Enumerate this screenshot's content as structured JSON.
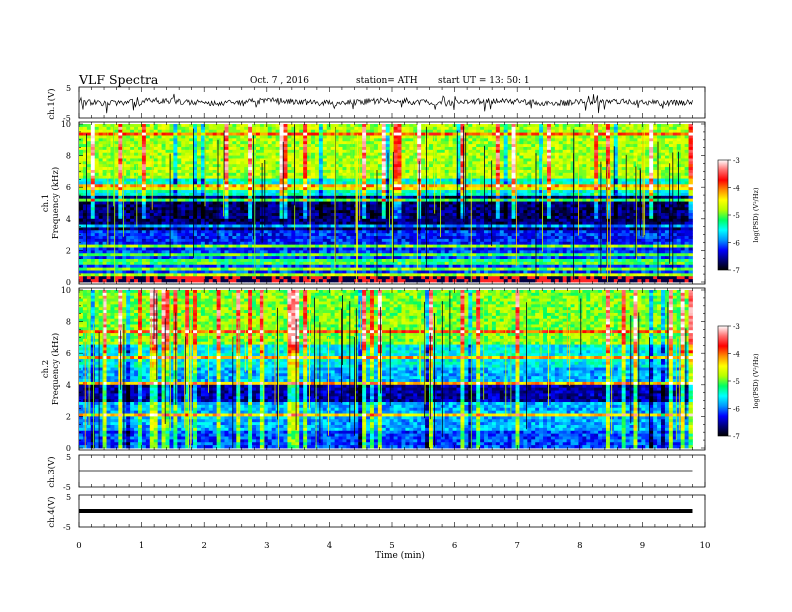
{
  "header": {
    "title": "VLF  Spectra",
    "date": "Oct. 7  , 2016",
    "station": "station= ATH",
    "start": "start  UT  =    13: 50: 1"
  },
  "chart_data": {
    "type": "heatmap",
    "panels": [
      {
        "id": "ch1-waveform",
        "ylabel": "ch.1(V)",
        "yticks": [
          "5",
          "-5"
        ],
        "ylim": [
          -5,
          5
        ],
        "style": "noisy waveform"
      },
      {
        "id": "ch1-spectrogram",
        "ylabel": [
          "ch.1",
          "Frequency  (kHz)"
        ],
        "yticks": [
          "0",
          "2",
          "4",
          "6",
          "8",
          "10"
        ],
        "ylim": [
          0,
          10
        ]
      },
      {
        "id": "ch2-spectrogram",
        "ylabel": [
          "ch.2",
          "Frequency  (kHz)"
        ],
        "yticks": [
          "0",
          "2",
          "4",
          "6",
          "8",
          "10"
        ],
        "ylim": [
          0,
          10
        ]
      },
      {
        "id": "ch3-waveform",
        "ylabel": "ch.3(V)",
        "yticks": [
          "5",
          "-5"
        ],
        "ylim": [
          -5,
          5
        ],
        "style": "flat line near 0"
      },
      {
        "id": "ch4-waveform",
        "ylabel": "ch.4(V)",
        "yticks": [
          "5",
          "-5"
        ],
        "ylim": [
          -5,
          5
        ],
        "style": "thick flat line near 0"
      }
    ],
    "xaxis": {
      "label": "Time  (min)",
      "ticks": [
        "0",
        "1",
        "2",
        "3",
        "4",
        "5",
        "6",
        "7",
        "8",
        "9",
        "10"
      ],
      "xlim": [
        0,
        10
      ],
      "data_end": 9.8
    },
    "colorbar": {
      "label": "log(PSD) (V²/Hz)",
      "ticks": [
        "-3",
        "-4",
        "-5",
        "-6",
        "-7"
      ],
      "range": [
        -7,
        -3
      ],
      "colormap": [
        "#000000",
        "#00007a",
        "#0000ff",
        "#0096ff",
        "#00ffff",
        "#00ff64",
        "#b4ff00",
        "#ffff00",
        "#ff8c00",
        "#ff0000",
        "#ff6e6e",
        "#ffffff"
      ]
    },
    "grid": false
  }
}
